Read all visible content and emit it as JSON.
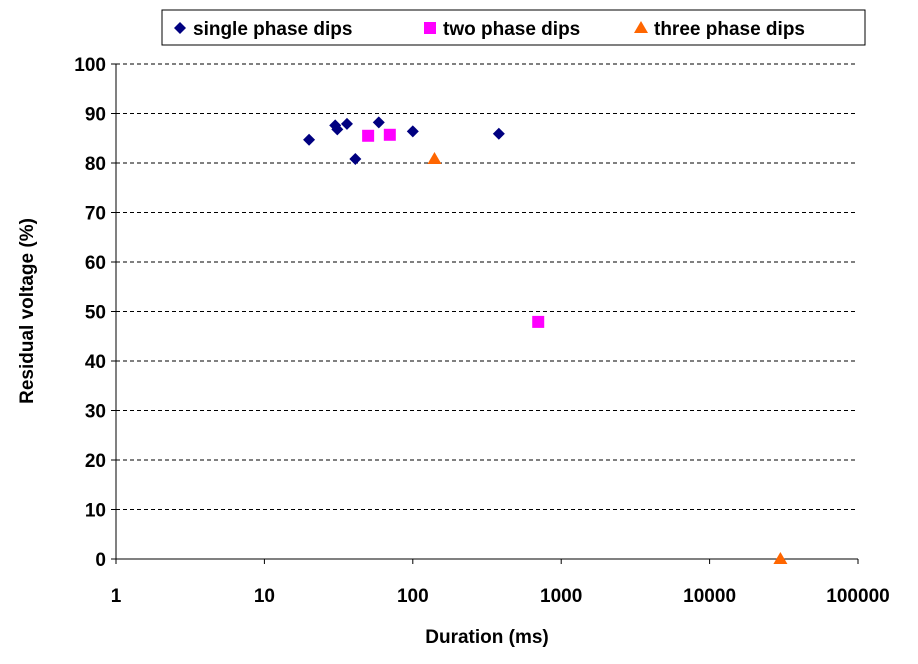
{
  "chart_data": {
    "type": "scatter",
    "title": "",
    "xlabel": "Duration (ms)",
    "ylabel": "Residual voltage (%)",
    "xscale": "log",
    "xlim": [
      1,
      100000
    ],
    "ylim": [
      0,
      100
    ],
    "xticks": [
      "1",
      "10",
      "100",
      "1000",
      "10000",
      "100000"
    ],
    "xtick_values": [
      1,
      10,
      100,
      1000,
      10000,
      100000
    ],
    "yticks": [
      "0",
      "10",
      "20",
      "30",
      "40",
      "50",
      "60",
      "70",
      "80",
      "90",
      "100"
    ],
    "ytick_values": [
      0,
      10,
      20,
      30,
      40,
      50,
      60,
      70,
      80,
      90,
      100
    ],
    "grid": "horizontal dashed",
    "legend_position": "top",
    "series": [
      {
        "name": "single phase dips",
        "marker": "diamond",
        "color": "#000080",
        "points": [
          [
            20,
            84.7
          ],
          [
            30,
            87.6
          ],
          [
            31,
            86.8
          ],
          [
            36,
            87.9
          ],
          [
            41,
            80.8
          ],
          [
            59,
            88.2
          ],
          [
            100,
            86.4
          ],
          [
            380,
            85.9
          ]
        ]
      },
      {
        "name": "two phase dips",
        "marker": "square",
        "color": "#FF00FF",
        "points": [
          [
            50,
            85.5
          ],
          [
            70,
            85.7
          ],
          [
            700,
            47.9
          ]
        ]
      },
      {
        "name": "three phase dips",
        "marker": "triangle",
        "color": "#FF6600",
        "points": [
          [
            140,
            80.8
          ],
          [
            30000,
            0
          ]
        ]
      }
    ]
  }
}
